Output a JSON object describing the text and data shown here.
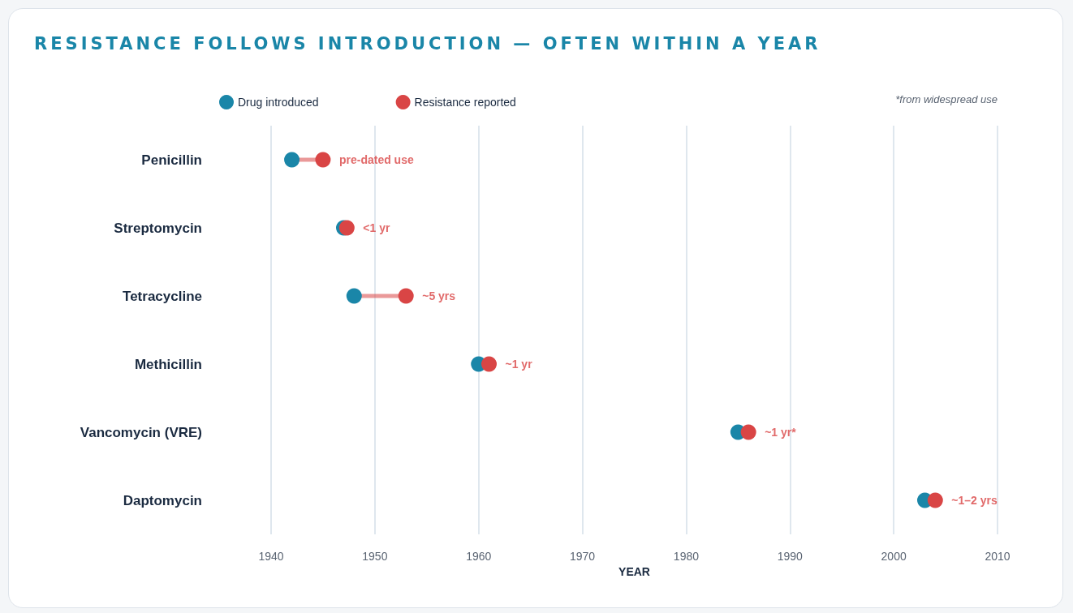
{
  "chart_data": {
    "type": "scatter",
    "title": "RESISTANCE FOLLOWS INTRODUCTION — OFTEN WITHIN A YEAR",
    "orientation": "horizontal",
    "xlabel": "YEAR",
    "categories": [
      "Penicillin",
      "Streptomycin",
      "Tetracycline",
      "Methicillin",
      "Vancomycin (VRE)",
      "Daptomycin"
    ],
    "series": [
      {
        "name": "Drug introduced",
        "color": "#1a86a8",
        "values": [
          1942,
          1947,
          1948,
          1960,
          1985,
          2003
        ]
      },
      {
        "name": "Resistance reported",
        "color": "#d94545",
        "values": [
          1945,
          1947.3,
          1953,
          1961,
          1986,
          2004
        ]
      }
    ],
    "xlim": [
      1940,
      2010
    ],
    "xticks": [
      1940,
      1950,
      1960,
      1970,
      1980,
      1990,
      2000,
      2010
    ],
    "grid": "x",
    "legend": "top",
    "marker": "circle",
    "annotations": [
      "*from widespread use",
      {
        "text": "pre-dated use",
        "x": 1945,
        "y": "Penicillin"
      },
      {
        "text": "<1 yr",
        "x": 1947.3,
        "y": "Streptomycin"
      },
      {
        "text": "~5 yrs",
        "x": 1953,
        "y": "Tetracycline"
      },
      {
        "text": "~1 yr",
        "x": 1961,
        "y": "Methicillin"
      },
      {
        "text": "~1 yr*",
        "x": 1986,
        "y": "Vancomycin (VRE)"
      },
      {
        "text": "~1–2 yrs",
        "x": 2004,
        "y": "Daptomycin"
      }
    ]
  }
}
